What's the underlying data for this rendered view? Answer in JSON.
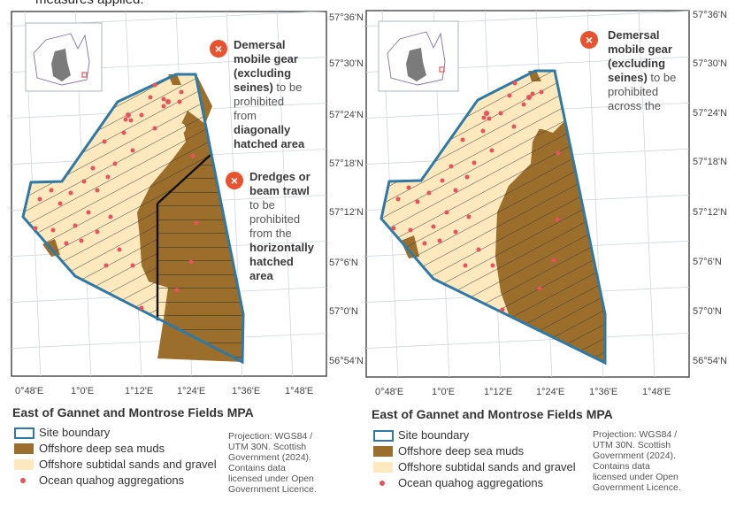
{
  "caption": "measures applied.",
  "panel_left": {
    "lat_labels": [
      "57°36'N",
      "57°30'N",
      "57°24'N",
      "57°18'N",
      "57°12'N",
      "57°6'N",
      "57°0'N",
      "56°54'N"
    ],
    "lon_labels": [
      "0°48'E",
      "1°0'E",
      "1°12'E",
      "1°24'E",
      "1°36'E",
      "1°48'E"
    ],
    "annotation1": {
      "icon": "×",
      "text": [
        "Demersal",
        "mobile gear",
        "(excluding",
        "seines)",
        " to be",
        "prohibited",
        "from",
        "diagonally",
        "hatched area"
      ]
    },
    "annotation2": {
      "icon": "×",
      "text": [
        "Dredges or",
        "beam trawl",
        " to be",
        "prohibited",
        "from the",
        "horizontally",
        "hatched",
        "area"
      ]
    },
    "title": "East of Gannet and Montrose Fields MPA",
    "legend": {
      "boundary": "Site boundary",
      "mud": "Offshore deep sea muds",
      "sand": "Offshore subtidal sands and gravel",
      "quahog": "Ocean quahog aggregations"
    },
    "projection": [
      "Projection: WGS84 /",
      "UTM 30N. Scottish",
      "Government (2024).",
      "Contains data",
      "licensed under Open",
      "Government Licence."
    ]
  },
  "panel_right": {
    "lat_labels": [
      "57°36'N",
      "57°30'N",
      "57°24'N",
      "57°18'N",
      "57°12'N",
      "57°6'N",
      "57°0'N",
      "56°54'N"
    ],
    "lon_labels": [
      "0°48'E",
      "1°0'E",
      "1°12'E",
      "1°24'E",
      "1°36'E",
      "1°48'E"
    ],
    "annotation1": {
      "icon": "×",
      "text": [
        "Demersal",
        "mobile gear",
        "(excluding",
        "seines)",
        " to be",
        "prohibited",
        "across the"
      ]
    },
    "title": "East of Gannet and Montrose Fields MPA",
    "legend": {
      "boundary": "Site boundary",
      "mud": "Offshore deep sea muds",
      "sand": "Offshore subtidal sands and gravel",
      "quahog": "Ocean quahog aggregations"
    },
    "projection": [
      "Projection: WGS84 /",
      "UTM 30N. Scottish",
      "Government (2024).",
      "Contains data",
      "licensed under Open",
      "Government Licence."
    ]
  },
  "colors": {
    "boundary": "#2f79a6",
    "mud": "#9b6e2c",
    "sand": "#fde9bd",
    "quahog": "#e8525a",
    "icon": "#e8522e"
  }
}
